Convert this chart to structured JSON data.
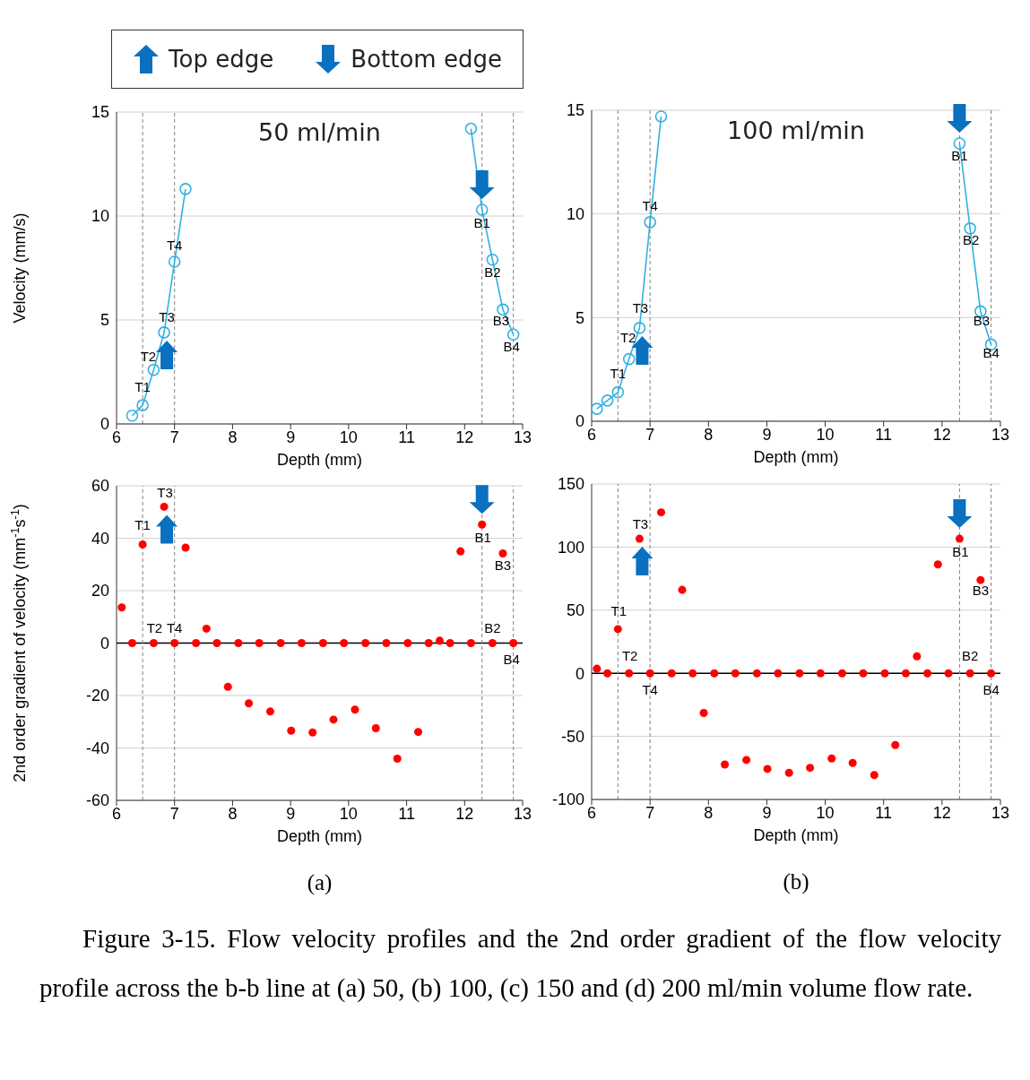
{
  "chart_data": [
    {
      "type": "line",
      "title": "50 ml/min",
      "ylabel": "Velocity (mm/s)",
      "xlabel": "Depth (mm)",
      "marker": "circle",
      "grid": "y",
      "xlim": [
        6,
        13
      ],
      "xticks": [
        6,
        7,
        8,
        9,
        10,
        11,
        12,
        13
      ],
      "ylim": [
        0,
        15
      ],
      "yticks": [
        0,
        5,
        10,
        15
      ],
      "series": [
        {
          "color": "#33b0e0",
          "x": [
            6.27,
            6.45,
            6.64,
            6.82,
            7.0,
            7.19
          ],
          "values": [
            0.4,
            0.9,
            2.6,
            4.4,
            7.8,
            11.3
          ]
        },
        {
          "color": "#33b0e0",
          "x": [
            12.11,
            12.3,
            12.48,
            12.66,
            12.84
          ],
          "values": [
            14.2,
            10.3,
            7.9,
            5.5,
            4.3
          ]
        }
      ],
      "ref_lines": [
        {
          "axis": "x",
          "value": 6.45,
          "color": "#808080",
          "line_style": "dashed"
        },
        {
          "axis": "x",
          "value": 7.0,
          "color": "#808080",
          "line_style": "dashed"
        },
        {
          "axis": "x",
          "value": 12.3,
          "color": "#808080",
          "line_style": "dashed"
        },
        {
          "axis": "x",
          "value": 12.84,
          "color": "#808080",
          "line_style": "dashed"
        }
      ],
      "annotations": [
        "Top edge",
        "Bottom edge",
        {
          "text": "T1",
          "x": 6.45,
          "y": 0.9
        },
        {
          "text": "T2",
          "x": 6.64,
          "y": 2.6
        },
        {
          "text": "T3",
          "x": 6.82,
          "y": 4.4
        },
        {
          "text": "T4",
          "x": 7.0,
          "y": 7.8
        },
        {
          "text": "B1",
          "x": 12.3,
          "y": 10.3
        },
        {
          "text": "B2",
          "x": 12.48,
          "y": 7.9
        },
        {
          "text": "B3",
          "x": 12.66,
          "y": 5.5
        },
        {
          "text": "B4",
          "x": 12.84,
          "y": 4.3
        }
      ]
    },
    {
      "type": "scatter",
      "ylabel": "2nd order gradient of velocity (mm$^{-1}$s$^{-1}$)",
      "xlabel": "Depth (mm)",
      "marker": "circle",
      "grid": "y",
      "xlim": [
        6,
        13
      ],
      "xticks": [
        6,
        7,
        8,
        9,
        10,
        11,
        12,
        13
      ],
      "ylim": [
        -60,
        60
      ],
      "yticks": [
        -60,
        -40,
        -20,
        0,
        20,
        40,
        60
      ],
      "x": [
        6.09,
        6.27,
        6.45,
        6.64,
        6.82,
        7.0,
        7.19,
        7.37,
        7.55,
        7.73,
        7.92,
        8.1,
        8.28,
        8.46,
        8.65,
        8.83,
        9.01,
        9.19,
        9.38,
        9.56,
        9.74,
        9.92,
        10.11,
        10.29,
        10.47,
        10.65,
        10.84,
        11.02,
        11.2,
        11.38,
        11.57,
        11.75,
        11.93,
        12.11,
        12.3,
        12.48,
        12.66,
        12.84
      ],
      "series": [
        {
          "color": "#ff0000",
          "values": [
            13.6,
            0,
            37.6,
            0,
            52,
            0,
            36.4,
            0,
            5.5,
            0,
            -16.7,
            0,
            -23,
            0,
            -26.1,
            0,
            -33.4,
            0,
            -34.1,
            0,
            -29.2,
            0,
            -25.4,
            0,
            -32.5,
            0,
            -44.1,
            0,
            -33.9,
            0,
            0.9,
            0,
            35,
            0,
            45.2,
            0,
            34.2,
            0
          ]
        }
      ],
      "ref_lines": [
        {
          "axis": "y",
          "value": 0,
          "color": "#000000"
        },
        {
          "axis": "x",
          "value": 6.45,
          "color": "#808080",
          "line_style": "dashed"
        },
        {
          "axis": "x",
          "value": 7.0,
          "color": "#808080",
          "line_style": "dashed"
        },
        {
          "axis": "x",
          "value": 12.3,
          "color": "#808080",
          "line_style": "dashed"
        },
        {
          "axis": "x",
          "value": 12.84,
          "color": "#808080",
          "line_style": "dashed"
        }
      ],
      "annotations": [
        "(a)",
        {
          "text": "T1",
          "x": 6.45,
          "y": 37.6
        },
        {
          "text": "T2",
          "x": 6.64,
          "y": 0
        },
        {
          "text": "T3",
          "x": 6.82,
          "y": 52
        },
        {
          "text": "T4",
          "x": 7.0,
          "y": 0
        },
        {
          "text": "B1",
          "x": 12.3,
          "y": 45.2
        },
        {
          "text": "B2",
          "x": 12.48,
          "y": 0
        },
        {
          "text": "B3",
          "x": 12.66,
          "y": 34.2
        },
        {
          "text": "B4",
          "x": 12.84,
          "y": 0
        }
      ]
    },
    {
      "type": "line",
      "title": "100 ml/min",
      "xlabel": "Depth (mm)",
      "marker": "circle",
      "grid": "y",
      "xlim": [
        6,
        13
      ],
      "xticks": [
        6,
        7,
        8,
        9,
        10,
        11,
        12,
        13
      ],
      "ylim": [
        0,
        15
      ],
      "yticks": [
        0,
        5,
        10,
        15
      ],
      "series": [
        {
          "color": "#33b0e0",
          "x": [
            6.09,
            6.27,
            6.45,
            6.64,
            6.82,
            7.0,
            7.19
          ],
          "values": [
            0.6,
            1.0,
            1.4,
            3.0,
            4.5,
            9.6,
            14.7
          ]
        },
        {
          "color": "#33b0e0",
          "x": [
            12.3,
            12.48,
            12.66,
            12.84
          ],
          "values": [
            13.4,
            9.3,
            5.3,
            3.7
          ]
        }
      ],
      "ref_lines": [
        {
          "axis": "x",
          "value": 6.45,
          "color": "#808080",
          "line_style": "dashed"
        },
        {
          "axis": "x",
          "value": 7.0,
          "color": "#808080",
          "line_style": "dashed"
        },
        {
          "axis": "x",
          "value": 12.3,
          "color": "#808080",
          "line_style": "dashed"
        },
        {
          "axis": "x",
          "value": 12.84,
          "color": "#808080",
          "line_style": "dashed"
        }
      ],
      "annotations": [
        {
          "text": "T1",
          "x": 6.45,
          "y": 1.4
        },
        {
          "text": "T2",
          "x": 6.64,
          "y": 3.0
        },
        {
          "text": "T3",
          "x": 6.82,
          "y": 4.5
        },
        {
          "text": "T4",
          "x": 7.0,
          "y": 9.6
        },
        {
          "text": "B1",
          "x": 12.3,
          "y": 13.4
        },
        {
          "text": "B2",
          "x": 12.48,
          "y": 9.3
        },
        {
          "text": "B3",
          "x": 12.66,
          "y": 5.3
        },
        {
          "text": "B4",
          "x": 12.84,
          "y": 3.7
        }
      ]
    },
    {
      "type": "scatter",
      "xlabel": "Depth (mm)",
      "marker": "circle",
      "grid": "y",
      "xlim": [
        6,
        13
      ],
      "xticks": [
        6,
        7,
        8,
        9,
        10,
        11,
        12,
        13
      ],
      "ylim": [
        -100,
        150
      ],
      "yticks": [
        -100,
        -50,
        0,
        50,
        100,
        150
      ],
      "x": [
        6.09,
        6.27,
        6.45,
        6.64,
        6.82,
        7.0,
        7.19,
        7.37,
        7.55,
        7.73,
        7.92,
        8.1,
        8.28,
        8.46,
        8.65,
        8.83,
        9.01,
        9.19,
        9.38,
        9.56,
        9.74,
        9.92,
        10.11,
        10.29,
        10.47,
        10.65,
        10.84,
        11.02,
        11.2,
        11.38,
        11.57,
        11.75,
        11.93,
        12.11,
        12.3,
        12.48,
        12.66,
        12.84
      ],
      "series": [
        {
          "color": "#ff0000",
          "values": [
            3.6,
            0,
            35,
            0,
            106.6,
            0,
            127.5,
            0,
            66.1,
            0,
            -31.5,
            0,
            -72.3,
            0,
            -68.7,
            0,
            -75.8,
            0,
            -78.9,
            0,
            -74.9,
            0,
            -67.5,
            0,
            -71.1,
            0,
            -80.6,
            0,
            -56.9,
            0,
            13.5,
            0,
            86.3,
            0,
            106.6,
            0,
            73.9,
            0
          ]
        }
      ],
      "ref_lines": [
        {
          "axis": "y",
          "value": 0,
          "color": "#000000"
        },
        {
          "axis": "x",
          "value": 6.45,
          "color": "#808080",
          "line_style": "dashed"
        },
        {
          "axis": "x",
          "value": 7.0,
          "color": "#808080",
          "line_style": "dashed"
        },
        {
          "axis": "x",
          "value": 12.3,
          "color": "#808080",
          "line_style": "dashed"
        },
        {
          "axis": "x",
          "value": 12.84,
          "color": "#808080",
          "line_style": "dashed"
        }
      ],
      "annotations": [
        "(b)",
        "Figure 3-15. Flow velocity profiles and the 2nd order gradient of the flow velocity profile across the b-b line at (a) 50, (b) 100, (c) 150 and (d) 200 ml/min volume flow rate.",
        {
          "text": "T1",
          "x": 6.45,
          "y": 35
        },
        {
          "text": "T2",
          "x": 6.64,
          "y": 0
        },
        {
          "text": "T3",
          "x": 6.82,
          "y": 106.6
        },
        {
          "text": "T4",
          "x": 7.0,
          "y": 0
        },
        {
          "text": "B1",
          "x": 12.3,
          "y": 106.6
        },
        {
          "text": "B2",
          "x": 12.48,
          "y": 0
        },
        {
          "text": "B3",
          "x": 12.66,
          "y": 73.9
        },
        {
          "text": "B4",
          "x": 12.84,
          "y": 0
        }
      ]
    }
  ]
}
